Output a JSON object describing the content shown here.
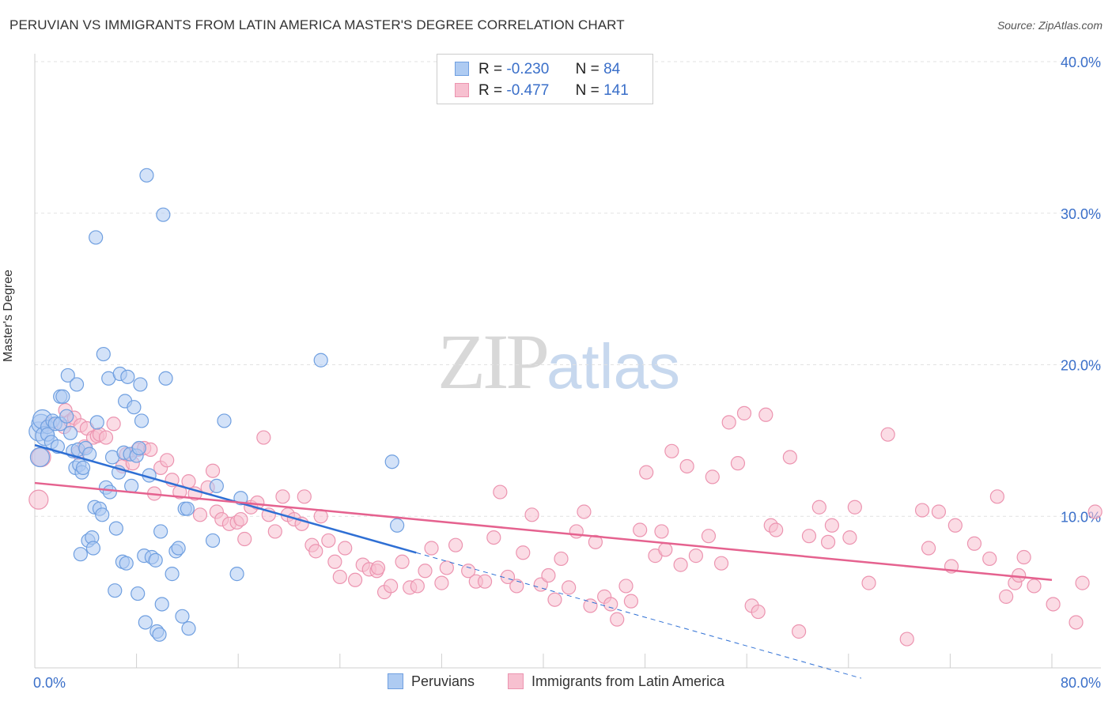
{
  "title": "PERUVIAN VS IMMIGRANTS FROM LATIN AMERICA MASTER'S DEGREE CORRELATION CHART",
  "source": "Source: ZipAtlas.com",
  "watermark": {
    "zip": "ZIP",
    "atlas": "atlas"
  },
  "legend": {
    "rows": [
      {
        "r_label": "R =",
        "r_value": "-0.230",
        "n_label": "N =",
        "n_value": "84"
      },
      {
        "r_label": "R =",
        "r_value": "-0.477",
        "n_label": "N =",
        "n_value": "141"
      }
    ]
  },
  "bottom_legend": {
    "series1": "Peruvians",
    "series2": "Immigrants from Latin America"
  },
  "colors": {
    "blue_fill": "#aecbf2",
    "blue_stroke": "#6f9fe0",
    "blue_line": "#2e6fd4",
    "pink_fill": "#f7c0d0",
    "pink_stroke": "#ec94b0",
    "pink_line": "#e5628f",
    "tick_label": "#3a6fc9",
    "grid": "#e2e2e2"
  },
  "chart_data": {
    "type": "scatter",
    "title": "PERUVIAN VS IMMIGRANTS FROM LATIN AMERICA MASTER'S DEGREE CORRELATION CHART",
    "xlabel": "",
    "ylabel": "Master's Degree",
    "xlim": [
      0,
      80
    ],
    "ylim": [
      0,
      40
    ],
    "x_tick_labels": [
      "0.0%",
      "80.0%"
    ],
    "y_ticks": [
      10,
      20,
      30,
      40
    ],
    "y_tick_labels": [
      "10.0%",
      "20.0%",
      "30.0%",
      "40.0%"
    ],
    "series": [
      {
        "name": "Peruvians",
        "r": -0.23,
        "n": 84,
        "trend": {
          "x0": 0,
          "y0": 14.7,
          "x1": 30,
          "y1": 7.6,
          "dashed_to_x": 65
        },
        "points": [
          [
            0.3,
            15.6
          ],
          [
            0.5,
            16.1
          ],
          [
            0.6,
            16.4
          ],
          [
            0.8,
            15.3
          ],
          [
            1.0,
            15.9
          ],
          [
            1.0,
            15.4
          ],
          [
            1.3,
            14.9
          ],
          [
            1.4,
            16.3
          ],
          [
            1.6,
            16.1
          ],
          [
            1.8,
            14.6
          ],
          [
            2.0,
            16.1
          ],
          [
            2.0,
            17.9
          ],
          [
            2.2,
            17.9
          ],
          [
            2.5,
            16.6
          ],
          [
            2.6,
            19.3
          ],
          [
            2.8,
            15.5
          ],
          [
            3.0,
            14.3
          ],
          [
            3.2,
            13.2
          ],
          [
            3.3,
            18.7
          ],
          [
            3.4,
            14.4
          ],
          [
            3.5,
            13.4
          ],
          [
            3.6,
            7.5
          ],
          [
            3.7,
            12.9
          ],
          [
            3.8,
            13.2
          ],
          [
            4.0,
            14.5
          ],
          [
            4.2,
            8.4
          ],
          [
            4.3,
            14.1
          ],
          [
            4.5,
            8.6
          ],
          [
            4.6,
            7.9
          ],
          [
            4.7,
            10.6
          ],
          [
            4.8,
            28.4
          ],
          [
            4.9,
            16.2
          ],
          [
            5.1,
            10.5
          ],
          [
            5.3,
            10.1
          ],
          [
            5.4,
            20.7
          ],
          [
            5.6,
            11.9
          ],
          [
            5.8,
            19.1
          ],
          [
            5.9,
            11.6
          ],
          [
            6.1,
            13.9
          ],
          [
            6.3,
            5.1
          ],
          [
            6.4,
            9.2
          ],
          [
            6.6,
            12.9
          ],
          [
            6.7,
            19.4
          ],
          [
            6.9,
            7.0
          ],
          [
            7.0,
            14.2
          ],
          [
            7.1,
            17.6
          ],
          [
            7.2,
            6.9
          ],
          [
            7.3,
            19.2
          ],
          [
            7.5,
            14.1
          ],
          [
            7.6,
            12.0
          ],
          [
            7.8,
            17.2
          ],
          [
            8.0,
            14.0
          ],
          [
            8.1,
            4.9
          ],
          [
            8.2,
            14.5
          ],
          [
            8.3,
            18.7
          ],
          [
            8.4,
            16.3
          ],
          [
            8.6,
            7.4
          ],
          [
            8.7,
            3.0
          ],
          [
            8.8,
            32.5
          ],
          [
            9.0,
            12.7
          ],
          [
            9.2,
            7.3
          ],
          [
            9.5,
            7.1
          ],
          [
            9.6,
            2.4
          ],
          [
            9.8,
            2.2
          ],
          [
            9.9,
            9.0
          ],
          [
            10.0,
            4.2
          ],
          [
            10.1,
            29.9
          ],
          [
            10.3,
            19.1
          ],
          [
            10.8,
            6.2
          ],
          [
            11.1,
            7.7
          ],
          [
            11.3,
            7.9
          ],
          [
            11.6,
            3.4
          ],
          [
            11.8,
            10.5
          ],
          [
            12.0,
            10.5
          ],
          [
            12.1,
            2.6
          ],
          [
            14.0,
            8.4
          ],
          [
            14.3,
            12.0
          ],
          [
            14.9,
            16.3
          ],
          [
            15.9,
            6.2
          ],
          [
            16.2,
            11.2
          ],
          [
            22.5,
            20.3
          ],
          [
            28.1,
            13.6
          ],
          [
            28.5,
            9.4
          ],
          [
            0.4,
            13.9
          ]
        ]
      },
      {
        "name": "Immigrants from Latin America",
        "r": -0.477,
        "n": 141,
        "trend": {
          "x0": 0,
          "y0": 12.2,
          "x1": 80,
          "y1": 5.8
        },
        "points": [
          [
            0.3,
            11.1
          ],
          [
            0.5,
            13.9
          ],
          [
            1.2,
            16.1
          ],
          [
            2.3,
            15.9
          ],
          [
            2.4,
            17.0
          ],
          [
            2.8,
            16.3
          ],
          [
            3.1,
            16.5
          ],
          [
            3.4,
            14.2
          ],
          [
            3.6,
            16.0
          ],
          [
            3.9,
            14.6
          ],
          [
            4.1,
            15.8
          ],
          [
            4.6,
            15.2
          ],
          [
            4.9,
            15.3
          ],
          [
            5.1,
            15.4
          ],
          [
            5.6,
            15.2
          ],
          [
            6.2,
            16.1
          ],
          [
            6.9,
            13.3
          ],
          [
            7.2,
            14.1
          ],
          [
            7.7,
            13.5
          ],
          [
            8.1,
            14.4
          ],
          [
            8.6,
            14.5
          ],
          [
            9.1,
            14.4
          ],
          [
            9.4,
            11.5
          ],
          [
            9.9,
            13.2
          ],
          [
            10.4,
            13.7
          ],
          [
            10.8,
            12.4
          ],
          [
            11.4,
            11.6
          ],
          [
            12.1,
            12.3
          ],
          [
            12.6,
            11.5
          ],
          [
            13.0,
            10.1
          ],
          [
            13.6,
            11.9
          ],
          [
            14.0,
            13.0
          ],
          [
            14.3,
            10.3
          ],
          [
            14.7,
            9.8
          ],
          [
            15.3,
            9.5
          ],
          [
            15.9,
            9.6
          ],
          [
            16.2,
            9.8
          ],
          [
            16.5,
            8.5
          ],
          [
            17.0,
            10.6
          ],
          [
            17.5,
            10.9
          ],
          [
            18.0,
            15.2
          ],
          [
            18.4,
            10.1
          ],
          [
            18.9,
            9.0
          ],
          [
            19.5,
            11.3
          ],
          [
            19.9,
            10.1
          ],
          [
            20.4,
            9.8
          ],
          [
            21.2,
            11.3
          ],
          [
            21.8,
            8.1
          ],
          [
            22.1,
            7.7
          ],
          [
            22.5,
            10.0
          ],
          [
            23.1,
            8.4
          ],
          [
            23.6,
            7.0
          ],
          [
            24.0,
            6.0
          ],
          [
            24.4,
            7.9
          ],
          [
            25.2,
            5.8
          ],
          [
            25.8,
            6.8
          ],
          [
            26.3,
            6.5
          ],
          [
            26.9,
            6.4
          ],
          [
            27.5,
            5.0
          ],
          [
            28.0,
            5.4
          ],
          [
            28.9,
            7.0
          ],
          [
            29.5,
            5.3
          ],
          [
            30.1,
            5.4
          ],
          [
            30.7,
            6.4
          ],
          [
            31.2,
            7.9
          ],
          [
            32.0,
            5.6
          ],
          [
            32.4,
            6.6
          ],
          [
            33.1,
            8.1
          ],
          [
            34.1,
            6.4
          ],
          [
            34.7,
            5.7
          ],
          [
            35.4,
            5.7
          ],
          [
            36.1,
            8.6
          ],
          [
            36.6,
            11.6
          ],
          [
            37.2,
            6.0
          ],
          [
            37.9,
            5.4
          ],
          [
            38.4,
            7.6
          ],
          [
            39.1,
            10.1
          ],
          [
            39.8,
            5.5
          ],
          [
            40.4,
            6.1
          ],
          [
            40.9,
            4.5
          ],
          [
            41.4,
            7.2
          ],
          [
            42.0,
            5.3
          ],
          [
            42.6,
            9.0
          ],
          [
            43.2,
            10.3
          ],
          [
            43.7,
            4.1
          ],
          [
            44.1,
            8.3
          ],
          [
            44.8,
            4.7
          ],
          [
            45.3,
            4.2
          ],
          [
            45.8,
            3.2
          ],
          [
            46.5,
            5.4
          ],
          [
            46.9,
            4.4
          ],
          [
            47.6,
            9.1
          ],
          [
            48.1,
            12.9
          ],
          [
            48.8,
            7.4
          ],
          [
            49.3,
            9.0
          ],
          [
            49.6,
            7.8
          ],
          [
            50.1,
            14.3
          ],
          [
            50.8,
            6.8
          ],
          [
            51.3,
            13.3
          ],
          [
            52.0,
            7.4
          ],
          [
            53.0,
            8.7
          ],
          [
            53.3,
            12.6
          ],
          [
            54.0,
            6.9
          ],
          [
            54.6,
            16.2
          ],
          [
            55.3,
            13.5
          ],
          [
            55.8,
            16.8
          ],
          [
            56.4,
            4.1
          ],
          [
            56.9,
            3.7
          ],
          [
            57.5,
            16.7
          ],
          [
            57.9,
            9.4
          ],
          [
            58.3,
            9.1
          ],
          [
            59.4,
            13.9
          ],
          [
            60.1,
            2.4
          ],
          [
            60.9,
            8.7
          ],
          [
            61.7,
            10.6
          ],
          [
            62.4,
            8.3
          ],
          [
            62.7,
            9.4
          ],
          [
            64.1,
            8.6
          ],
          [
            64.5,
            10.6
          ],
          [
            65.6,
            5.6
          ],
          [
            67.1,
            15.4
          ],
          [
            68.6,
            1.9
          ],
          [
            69.8,
            10.4
          ],
          [
            70.3,
            7.9
          ],
          [
            71.1,
            10.3
          ],
          [
            72.1,
            6.7
          ],
          [
            72.4,
            9.4
          ],
          [
            73.9,
            8.2
          ],
          [
            75.1,
            7.2
          ],
          [
            75.7,
            11.3
          ],
          [
            76.4,
            4.7
          ],
          [
            77.1,
            5.6
          ],
          [
            77.4,
            6.1
          ],
          [
            77.8,
            7.3
          ],
          [
            78.6,
            5.4
          ],
          [
            80.1,
            4.2
          ],
          [
            81.9,
            3.0
          ],
          [
            82.4,
            5.6
          ],
          [
            83.4,
            10.3
          ],
          [
            21.0,
            9.5
          ],
          [
            27.0,
            6.6
          ]
        ]
      }
    ]
  }
}
